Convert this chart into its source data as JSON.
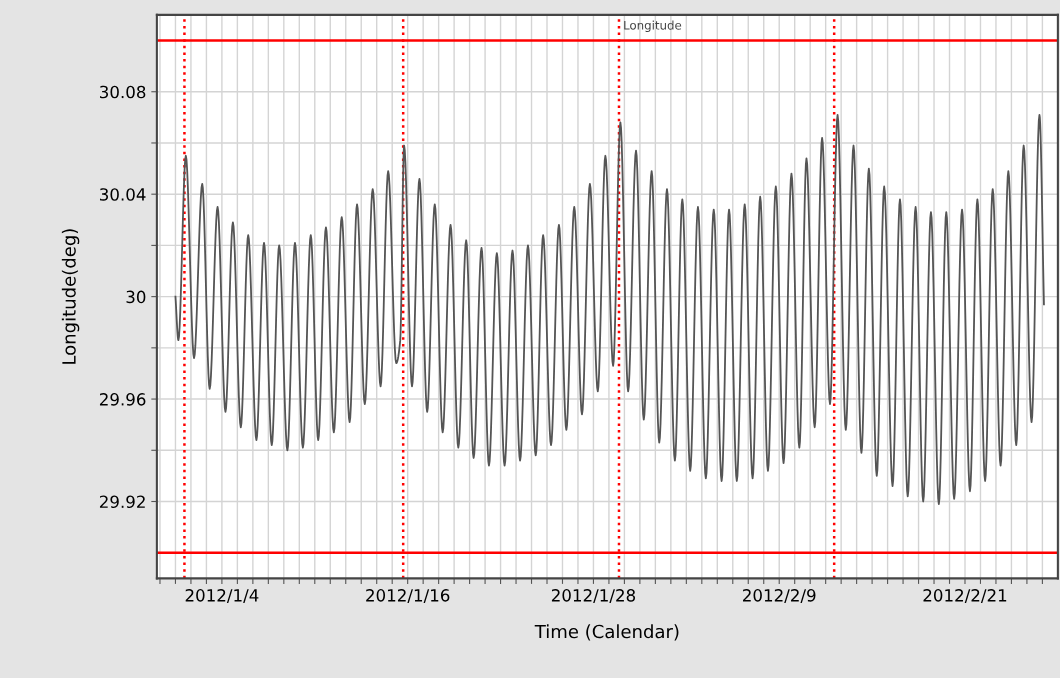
{
  "chart_data": {
    "type": "line",
    "title": "Longitude",
    "xlabel": "Time (Calendar)",
    "ylabel": "Longitude(deg)",
    "series": [
      {
        "color": "#555555",
        "x": [
          "2012-01-01T00:00",
          "2012-01-01T04:34",
          "2012-01-01T16:05",
          "2012-01-02T04:48",
          "2012-01-02T17:31",
          "2012-01-03T05:02",
          "2012-01-03T17:17",
          "2012-01-04T05:31",
          "2012-01-04T17:02",
          "2012-01-05T05:17",
          "2012-01-05T16:48",
          "2012-01-06T05:31",
          "2012-01-06T17:17",
          "2012-01-07T05:17",
          "2012-01-07T16:48",
          "2012-01-08T05:31",
          "2012-01-08T17:17",
          "2012-01-09T05:31",
          "2012-01-09T17:46",
          "2012-01-10T05:17",
          "2012-01-10T17:17",
          "2012-01-11T05:31",
          "2012-01-11T17:46",
          "2012-01-12T06:00",
          "2012-01-12T17:31",
          "2012-01-13T05:31",
          "2012-01-13T17:46",
          "2012-01-14T06:00",
          "2012-01-14T17:46",
          "2012-01-15T06:14",
          "2012-01-15T12:29",
          "2012-01-15T18:29",
          "2012-01-16T06:43",
          "2012-01-16T18:14",
          "2012-01-17T06:14",
          "2012-01-17T18:00",
          "2012-01-18T06:14",
          "2012-01-18T18:29",
          "2012-01-19T06:29",
          "2012-01-19T18:43",
          "2012-01-20T06:14",
          "2012-01-20T18:29",
          "2012-01-21T06:00",
          "2012-01-21T18:14",
          "2012-01-22T06:14",
          "2012-01-22T18:29",
          "2012-01-23T06:14",
          "2012-01-23T18:29",
          "2012-01-24T06:29",
          "2012-01-24T18:00",
          "2012-01-25T06:14",
          "2012-01-25T18:29",
          "2012-01-26T06:00",
          "2012-01-26T18:14",
          "2012-01-27T06:14",
          "2012-01-27T18:29",
          "2012-01-28T06:43",
          "2012-01-28T18:29",
          "2012-01-29T06:29",
          "2012-01-29T17:46",
          "2012-01-30T05:46",
          "2012-01-30T18:00",
          "2012-01-31T06:00",
          "2012-01-31T18:14",
          "2012-02-01T06:00",
          "2012-02-01T18:00",
          "2012-02-02T06:14",
          "2012-02-02T17:46",
          "2012-02-03T06:00",
          "2012-02-03T18:00",
          "2012-02-04T06:14",
          "2012-02-04T18:29",
          "2012-02-05T06:43",
          "2012-02-05T18:14",
          "2012-02-06T06:14",
          "2012-02-06T18:29",
          "2012-02-07T06:43",
          "2012-02-07T18:29",
          "2012-02-08T06:29",
          "2012-02-08T18:43",
          "2012-02-09T06:43",
          "2012-02-09T18:58",
          "2012-02-10T07:12",
          "2012-02-10T18:14",
          "2012-02-11T06:58",
          "2012-02-11T18:29",
          "2012-02-12T06:43",
          "2012-02-12T18:29",
          "2012-02-13T07:12",
          "2012-02-13T19:12",
          "2012-02-14T07:26",
          "2012-02-14T18:58",
          "2012-02-15T07:12",
          "2012-02-15T18:43",
          "2012-02-16T07:41",
          "2012-02-16T19:12",
          "2012-02-17T07:12",
          "2012-02-17T19:26",
          "2012-02-18T07:12",
          "2012-02-18T19:12",
          "2012-02-19T07:26",
          "2012-02-19T18:58",
          "2012-02-20T07:12",
          "2012-02-20T19:26",
          "2012-02-21T07:41",
          "2012-02-21T19:12",
          "2012-02-22T07:12",
          "2012-02-22T18:58",
          "2012-02-23T07:12",
          "2012-02-23T19:12",
          "2012-02-24T07:26",
          "2012-02-24T18:58",
          "2012-02-25T07:12",
          "2012-02-25T19:26",
          "2012-02-26T02:24"
        ],
        "values": [
          30.0,
          29.983,
          30.055,
          29.976,
          30.044,
          29.964,
          30.035,
          29.955,
          30.029,
          29.949,
          30.024,
          29.944,
          30.021,
          29.942,
          30.02,
          29.94,
          30.021,
          29.941,
          30.024,
          29.944,
          30.027,
          29.947,
          30.031,
          29.951,
          30.036,
          29.958,
          30.042,
          29.965,
          30.049,
          29.974,
          29.983,
          30.059,
          29.965,
          30.046,
          29.955,
          30.036,
          29.947,
          30.028,
          29.941,
          30.022,
          29.937,
          30.019,
          29.934,
          30.017,
          29.934,
          30.018,
          29.936,
          30.02,
          29.938,
          30.024,
          29.942,
          30.028,
          29.948,
          30.035,
          29.954,
          30.044,
          29.963,
          30.055,
          29.973,
          30.068,
          29.963,
          30.057,
          29.952,
          30.049,
          29.943,
          30.042,
          29.936,
          30.038,
          29.932,
          30.035,
          29.929,
          30.034,
          29.928,
          30.034,
          29.928,
          30.036,
          29.929,
          30.039,
          29.932,
          30.043,
          29.935,
          30.048,
          29.941,
          30.054,
          29.949,
          30.062,
          29.958,
          30.071,
          29.948,
          30.059,
          29.939,
          30.05,
          29.93,
          30.043,
          29.926,
          30.038,
          29.922,
          30.035,
          29.92,
          30.033,
          29.919,
          30.033,
          29.921,
          30.034,
          29.924,
          30.038,
          29.928,
          30.042,
          29.934,
          30.049,
          29.942,
          30.059,
          29.951,
          30.071,
          29.997
        ]
      }
    ],
    "xlim": [
      "2011-12-30T19:12",
      "2012-02-27"
    ],
    "ylim": [
      29.89,
      30.11
    ],
    "xticks": [
      {
        "value": "2011-12-31",
        "label": null
      },
      {
        "value": "2012-01-01",
        "label": null
      },
      {
        "value": "2012-01-02",
        "label": null
      },
      {
        "value": "2012-01-03",
        "label": null
      },
      {
        "value": "2012-01-04",
        "label": "2012/1/4"
      },
      {
        "value": "2012-01-05",
        "label": null
      },
      {
        "value": "2012-01-06",
        "label": null
      },
      {
        "value": "2012-01-07",
        "label": null
      },
      {
        "value": "2012-01-08",
        "label": null
      },
      {
        "value": "2012-01-09",
        "label": null
      },
      {
        "value": "2012-01-10",
        "label": null
      },
      {
        "value": "2012-01-11",
        "label": null
      },
      {
        "value": "2012-01-12",
        "label": null
      },
      {
        "value": "2012-01-13",
        "label": null
      },
      {
        "value": "2012-01-14",
        "label": null
      },
      {
        "value": "2012-01-15",
        "label": null
      },
      {
        "value": "2012-01-16",
        "label": "2012/1/16"
      },
      {
        "value": "2012-01-17",
        "label": null
      },
      {
        "value": "2012-01-18",
        "label": null
      },
      {
        "value": "2012-01-19",
        "label": null
      },
      {
        "value": "2012-01-20",
        "label": null
      },
      {
        "value": "2012-01-21",
        "label": null
      },
      {
        "value": "2012-01-22",
        "label": null
      },
      {
        "value": "2012-01-23",
        "label": null
      },
      {
        "value": "2012-01-24",
        "label": null
      },
      {
        "value": "2012-01-25",
        "label": null
      },
      {
        "value": "2012-01-26",
        "label": null
      },
      {
        "value": "2012-01-27",
        "label": null
      },
      {
        "value": "2012-01-28",
        "label": "2012/1/28"
      },
      {
        "value": "2012-01-29",
        "label": null
      },
      {
        "value": "2012-01-30",
        "label": null
      },
      {
        "value": "2012-01-31",
        "label": null
      },
      {
        "value": "2012-02-01",
        "label": null
      },
      {
        "value": "2012-02-02",
        "label": null
      },
      {
        "value": "2012-02-03",
        "label": null
      },
      {
        "value": "2012-02-04",
        "label": null
      },
      {
        "value": "2012-02-05",
        "label": null
      },
      {
        "value": "2012-02-06",
        "label": null
      },
      {
        "value": "2012-02-07",
        "label": null
      },
      {
        "value": "2012-02-08",
        "label": null
      },
      {
        "value": "2012-02-09",
        "label": "2012/2/9"
      },
      {
        "value": "2012-02-10",
        "label": null
      },
      {
        "value": "2012-02-11",
        "label": null
      },
      {
        "value": "2012-02-12",
        "label": null
      },
      {
        "value": "2012-02-13",
        "label": null
      },
      {
        "value": "2012-02-14",
        "label": null
      },
      {
        "value": "2012-02-15",
        "label": null
      },
      {
        "value": "2012-02-16",
        "label": null
      },
      {
        "value": "2012-02-17",
        "label": null
      },
      {
        "value": "2012-02-18",
        "label": null
      },
      {
        "value": "2012-02-19",
        "label": null
      },
      {
        "value": "2012-02-20",
        "label": null
      },
      {
        "value": "2012-02-21",
        "label": "2012/2/21"
      },
      {
        "value": "2012-02-22",
        "label": null
      },
      {
        "value": "2012-02-23",
        "label": null
      },
      {
        "value": "2012-02-24",
        "label": null
      },
      {
        "value": "2012-02-25",
        "label": null
      },
      {
        "value": "2012-02-26",
        "label": null
      }
    ],
    "yticks": [
      {
        "value": 29.92,
        "label": "29.92"
      },
      {
        "value": 29.94,
        "label": null
      },
      {
        "value": 29.96,
        "label": "29.96"
      },
      {
        "value": 29.98,
        "label": null
      },
      {
        "value": 30,
        "label": "30"
      },
      {
        "value": 30.02,
        "label": null
      },
      {
        "value": 30.04,
        "label": "30.04"
      },
      {
        "value": 30.06,
        "label": null
      },
      {
        "value": 30.08,
        "label": "30.08"
      }
    ],
    "grid": true,
    "marker": "none",
    "line_style": "solid",
    "ref_lines": [
      {
        "axis": "y",
        "value": 30.1,
        "color": "#ff0000",
        "line_style": "solid"
      },
      {
        "axis": "y",
        "value": 29.9,
        "color": "#ff0000",
        "line_style": "solid"
      },
      {
        "axis": "x",
        "value": "2012-01-01T13:55",
        "color": "#ff0000",
        "line_style": "dotted"
      },
      {
        "axis": "x",
        "value": "2012-01-15T17:02",
        "color": "#ff0000",
        "line_style": "dotted"
      },
      {
        "axis": "x",
        "value": "2012-01-29T15:36",
        "color": "#ff0000",
        "line_style": "dotted"
      },
      {
        "axis": "x",
        "value": "2012-02-12T13:12",
        "color": "#ff0000",
        "line_style": "dotted"
      }
    ]
  }
}
